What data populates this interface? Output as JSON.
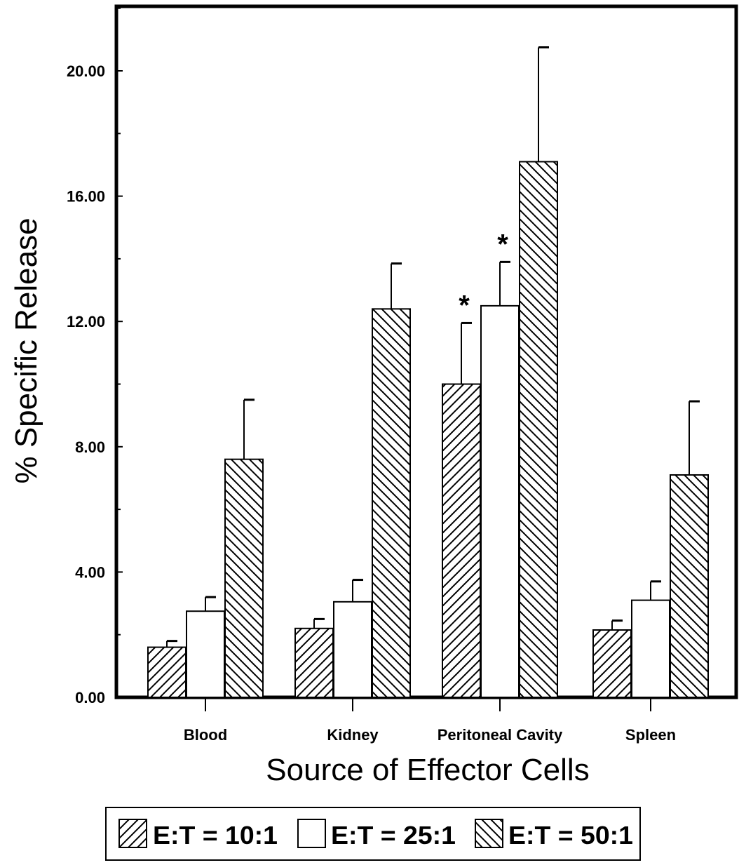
{
  "chart_data": {
    "type": "bar",
    "xlabel": "Source of Effector Cells",
    "ylabel": "% Specific Release",
    "ylim": [
      0,
      22
    ],
    "yticks": [
      "0.00",
      "4.00",
      "8.00",
      "12.00",
      "16.00",
      "20.00"
    ],
    "ytick_values": [
      0,
      4,
      8,
      12,
      16,
      20
    ],
    "categories": [
      "Blood",
      "Kidney",
      "Peritoneal Cavity",
      "Spleen"
    ],
    "series": [
      {
        "name": "E:T = 10:1",
        "pattern": "hatch-forward",
        "values": [
          1.6,
          2.2,
          10.0,
          2.15
        ],
        "errors": [
          0.2,
          0.3,
          1.95,
          0.3
        ]
      },
      {
        "name": "E:T = 25:1",
        "pattern": "open",
        "values": [
          2.75,
          3.05,
          12.5,
          3.1
        ],
        "errors": [
          0.45,
          0.7,
          1.4,
          0.6
        ]
      },
      {
        "name": "E:T = 50:1",
        "pattern": "hatch-backward",
        "values": [
          7.6,
          12.4,
          17.1,
          7.1
        ],
        "errors": [
          1.9,
          1.45,
          3.65,
          2.35
        ]
      }
    ],
    "significance": [
      {
        "category": "Peritoneal Cavity",
        "series": "E:T = 10:1",
        "mark": "*"
      },
      {
        "category": "Peritoneal Cavity",
        "series": "E:T = 25:1",
        "mark": "*"
      }
    ],
    "legend": {
      "placement": "bottom",
      "items": [
        "E:T = 10:1",
        "E:T = 25:1",
        "E:T = 50:1"
      ]
    },
    "grid": false,
    "colors": {
      "stroke": "#000000",
      "fill": "#ffffff"
    }
  }
}
